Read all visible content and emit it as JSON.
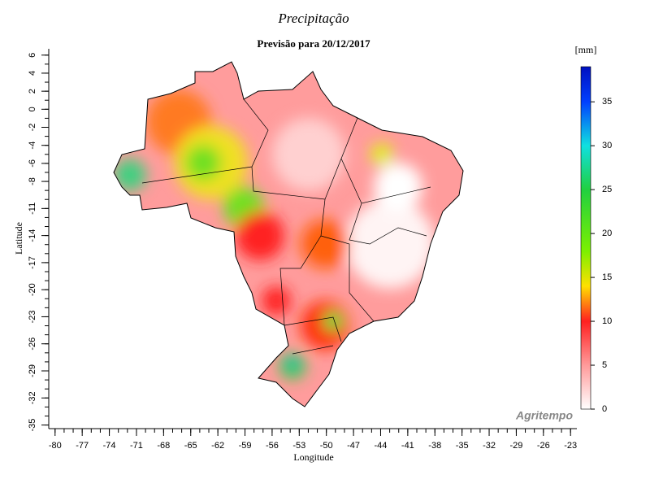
{
  "chart_data": {
    "type": "map",
    "title": "Precipitação",
    "subtitle": "Previsão para 20/12/2017",
    "x_label": "Longitude",
    "y_label": "Latitude",
    "xlim": [
      -80.7,
      -22.3
    ],
    "ylim": [
      -35.4,
      6.7
    ],
    "xticks": [
      -80,
      -77,
      -74,
      -71,
      -68,
      -65,
      -62,
      -59,
      -56,
      -53,
      -50,
      -47,
      -44,
      -41,
      -38,
      -35,
      -32,
      -29,
      -26,
      -23
    ],
    "x_minor_ticks": [
      -80,
      -79,
      -78,
      -77,
      -76,
      -75,
      -74,
      -73,
      -72,
      -71,
      -70,
      -69,
      -68,
      -67,
      -66,
      -65,
      -64,
      -63,
      -62,
      -61,
      -60,
      -59,
      -58,
      -57,
      -56,
      -55,
      -54,
      -53,
      -52,
      -51,
      -50,
      -49,
      -48,
      -47,
      -46,
      -45,
      -44,
      -43,
      -42,
      -41,
      -40,
      -39,
      -38,
      -37,
      -36,
      -35,
      -34,
      -33,
      -32,
      -31,
      -30,
      -29,
      -28,
      -27,
      -26,
      -25,
      -24,
      -23
    ],
    "yticks": [
      6,
      4,
      2,
      0,
      -2,
      -4,
      -6,
      -8,
      -11,
      -14,
      -17,
      -20,
      -23,
      -26,
      -29,
      -32,
      -35
    ],
    "y_minor_ticks": [
      6,
      5,
      4,
      3,
      2,
      1,
      0,
      -1,
      -2,
      -3,
      -4,
      -5,
      -6,
      -7,
      -8,
      -9,
      -10,
      -11,
      -12,
      -13,
      -14,
      -15,
      -16,
      -17,
      -18,
      -19,
      -20,
      -21,
      -22,
      -23,
      -24,
      -25,
      -26,
      -27,
      -28,
      -29,
      -30,
      -31,
      -32,
      -33,
      -34,
      -35
    ],
    "colorbar": {
      "unit": "[mm]",
      "lim": [
        0,
        39
      ],
      "ticks": [
        0,
        5,
        10,
        15,
        20,
        25,
        30,
        35
      ],
      "colors": [
        "#ffffff",
        "#ff9a9a",
        "#ff2020",
        "#ffe000",
        "#7cf000",
        "#20d040",
        "#10e0e0",
        "#0040ff",
        "#0010c0"
      ],
      "color_stops": [
        0,
        5,
        10,
        14,
        18,
        25,
        30,
        35,
        39
      ]
    },
    "watermark": "Agritempo"
  }
}
